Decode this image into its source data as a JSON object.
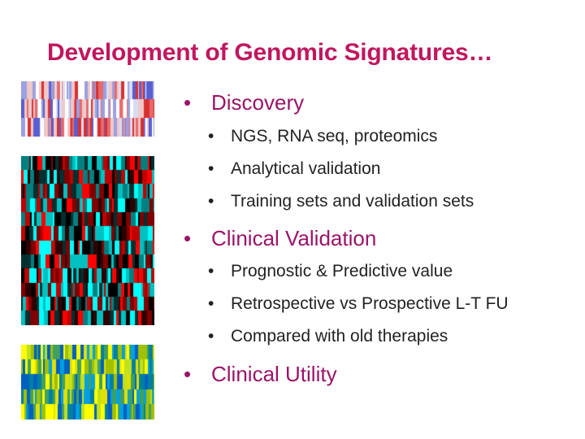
{
  "slide": {
    "title": "Development of Genomic Signatures…",
    "bullet_symbol": "•",
    "sections": [
      {
        "heading": "Discovery",
        "items": [
          "NGS, RNA seq, proteomics",
          "Analytical validation",
          "Training sets and validation sets"
        ]
      },
      {
        "heading": "Clinical Validation",
        "items": [
          "Prognostic & Predictive value",
          "Retrospective vs Prospective L-T FU",
          "Compared with old therapies"
        ]
      },
      {
        "heading": "Clinical Utility",
        "items": []
      }
    ]
  },
  "images": [
    {
      "name": "heatmap-discovery-image",
      "palette": [
        "#ffffff",
        "#d8dcf2",
        "#9aa0e0",
        "#5a5fd0",
        "#f0c8c8",
        "#e86a6a",
        "#d83030"
      ]
    },
    {
      "name": "heatmap-validation-image",
      "palette": [
        "#ff0000",
        "#c00000",
        "#800000",
        "#300000",
        "#000000",
        "#003030",
        "#008080",
        "#00c0c0",
        "#00ffff"
      ]
    },
    {
      "name": "heatmap-utility-image",
      "palette": [
        "#ffff00",
        "#e0e000",
        "#a0c000",
        "#40a060",
        "#0080a0",
        "#00a0e0",
        "#0060c0",
        "#c0e020"
      ]
    }
  ],
  "colors": {
    "title": "#c0175f",
    "heading": "#9b1467",
    "subitem": "#222222"
  }
}
